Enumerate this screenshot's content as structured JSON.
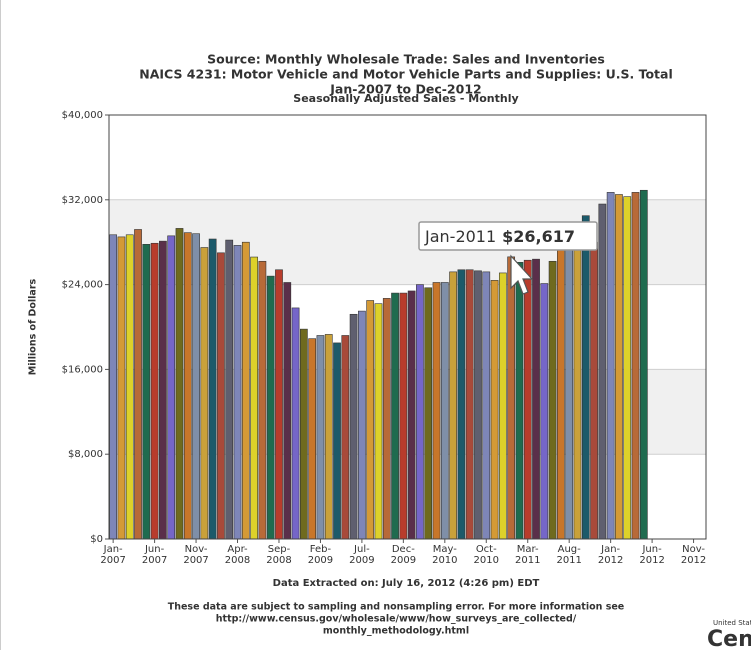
{
  "chart_data": {
    "type": "bar",
    "title": [
      "Source: Monthly Wholesale Trade: Sales and Inventories",
      "NAICS 4231: Motor Vehicle and Motor Vehicle Parts and Supplies: U.S. Total",
      "Jan-2007 to Dec-2012"
    ],
    "subtitle": "Seasonally Adjusted Sales - Monthly",
    "y_label": "Millions of Dollars",
    "x_label": "Data Extracted on: July 16, 2012 (4:26 pm) EDT",
    "footnote": [
      "These data are subject to sampling and nonsampling error. For more information see",
      "http://www.census.gov/wholesale/www/how_surveys_are_collected/",
      "monthly_methodology.html"
    ],
    "logo": [
      "United States",
      "Census"
    ],
    "tooltip": {
      "category": "Jan-2011",
      "text": "$26,617"
    },
    "categories": [
      "Jan-2007",
      null,
      null,
      null,
      null,
      "Jun-2007",
      null,
      null,
      null,
      null,
      "Nov-2007",
      null,
      null,
      null,
      null,
      "Apr-2008",
      null,
      null,
      null,
      null,
      "Sep-2008",
      null,
      null,
      null,
      null,
      "Feb-2009",
      null,
      null,
      null,
      null,
      "Jul-2009",
      null,
      null,
      null,
      null,
      "Dec-2009",
      null,
      null,
      null,
      null,
      "May-2010",
      null,
      null,
      null,
      null,
      "Oct-2010",
      null,
      null,
      null,
      null,
      "Mar-2011",
      null,
      null,
      null,
      null,
      "Aug-2011",
      null,
      null,
      null,
      null,
      "Jan-2012",
      null,
      null,
      null,
      null,
      "Jun-2012",
      null,
      null,
      null,
      null,
      "Nov-2012",
      null
    ],
    "values": [
      28700,
      28500,
      28700,
      29200,
      27800,
      27900,
      28100,
      28600,
      29300,
      28900,
      28800,
      27500,
      28300,
      27000,
      28200,
      27700,
      28000,
      26600,
      26200,
      24800,
      25400,
      24200,
      21800,
      19800,
      18900,
      19200,
      19300,
      18500,
      19200,
      21200,
      21500,
      22500,
      22200,
      22700,
      23200,
      23200,
      23400,
      24000,
      23700,
      24200,
      24200,
      25200,
      25400,
      25400,
      25300,
      25200,
      24400,
      25100,
      26617,
      26100,
      26300,
      26400,
      24100,
      26200,
      27800,
      27300,
      28400,
      30500,
      28000,
      31600,
      32700,
      32500,
      32300,
      32700,
      32900,
      null,
      null,
      null,
      null,
      null,
      null,
      null
    ],
    "palette": [
      "#7e86b8",
      "#d49a36",
      "#ddd12a",
      "#b86a38",
      "#1f6b4f",
      "#b83c2c",
      "#5a2f4a",
      "#7566c8",
      "#6f6a1e",
      "#c8762a",
      "#7f8fa8",
      "#c9a13a",
      "#1c5a6a",
      "#a84a3a",
      "#5f5f6f"
    ],
    "ylim": [
      0,
      40000
    ],
    "yticks": [
      {
        "value": 0,
        "label": "$0"
      },
      {
        "value": 8000,
        "label": "$8,000"
      },
      {
        "value": 16000,
        "label": "$16,000"
      },
      {
        "value": 24000,
        "label": "$24,000"
      },
      {
        "value": 32000,
        "label": "$32,000"
      },
      {
        "value": 40000,
        "label": "$40,000"
      }
    ],
    "grid": "bands"
  }
}
